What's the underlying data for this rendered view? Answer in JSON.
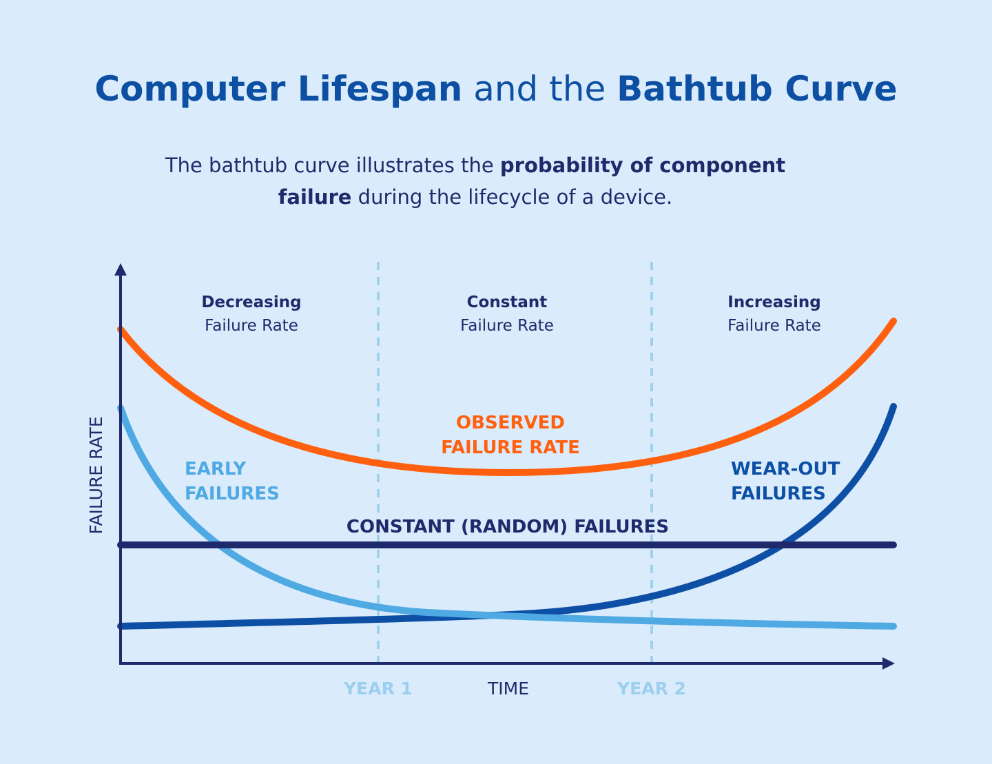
{
  "header": {
    "title": [
      "Computer Lifespan",
      "and the",
      "Bathtub Curve"
    ],
    "subtitle": {
      "line1": [
        "The bathtub curve illustrates the",
        "probability of component"
      ],
      "line2": [
        "failure",
        "during the lifecycle of a device."
      ]
    }
  },
  "phases": [
    {
      "title": "Decreasing",
      "subtitle": "Failure Rate"
    },
    {
      "title": "Constant",
      "subtitle": "Failure Rate"
    },
    {
      "title": "Increasing",
      "subtitle": "Failure Rate"
    }
  ],
  "curves": {
    "observed": [
      "OBSERVED",
      "FAILURE RATE"
    ],
    "early": [
      "EARLY",
      "FAILURES"
    ],
    "wear_out": [
      "WEAR-OUT",
      "FAILURES"
    ],
    "constant": "CONSTANT (RANDOM) FAILURES"
  },
  "axes": {
    "y_label": "FAILURE RATE",
    "x_label": "TIME",
    "markers": [
      "YEAR 1",
      "YEAR 2"
    ]
  }
}
